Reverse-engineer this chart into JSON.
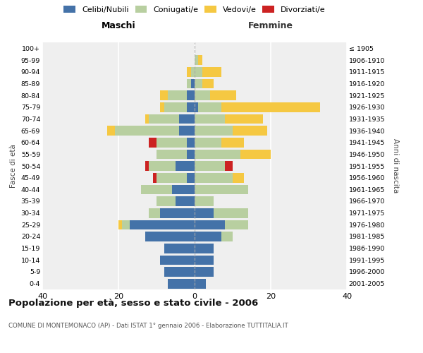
{
  "age_groups": [
    "0-4",
    "5-9",
    "10-14",
    "15-19",
    "20-24",
    "25-29",
    "30-34",
    "35-39",
    "40-44",
    "45-49",
    "50-54",
    "55-59",
    "60-64",
    "65-69",
    "70-74",
    "75-79",
    "80-84",
    "85-89",
    "90-94",
    "95-99",
    "100+"
  ],
  "birth_years": [
    "2001-2005",
    "1996-2000",
    "1991-1995",
    "1986-1990",
    "1981-1985",
    "1976-1980",
    "1971-1975",
    "1966-1970",
    "1961-1965",
    "1956-1960",
    "1951-1955",
    "1946-1950",
    "1941-1945",
    "1936-1940",
    "1931-1935",
    "1926-1930",
    "1921-1925",
    "1916-1920",
    "1911-1915",
    "1906-1910",
    "≤ 1905"
  ],
  "maschi": {
    "celibi": [
      7,
      8,
      9,
      8,
      13,
      17,
      9,
      5,
      6,
      2,
      5,
      2,
      2,
      4,
      4,
      2,
      2,
      1,
      0,
      0,
      0
    ],
    "coniugati": [
      0,
      0,
      0,
      0,
      0,
      2,
      3,
      5,
      8,
      8,
      7,
      8,
      8,
      17,
      8,
      6,
      5,
      1,
      1,
      0,
      0
    ],
    "vedovi": [
      0,
      0,
      0,
      0,
      0,
      1,
      0,
      0,
      0,
      0,
      0,
      0,
      0,
      2,
      1,
      1,
      2,
      0,
      1,
      0,
      0
    ],
    "divorziati": [
      0,
      0,
      0,
      0,
      0,
      0,
      0,
      0,
      0,
      1,
      1,
      0,
      2,
      0,
      0,
      0,
      0,
      0,
      0,
      0,
      0
    ]
  },
  "femmine": {
    "nubili": [
      3,
      5,
      5,
      5,
      7,
      8,
      5,
      0,
      0,
      0,
      0,
      0,
      0,
      0,
      0,
      1,
      0,
      0,
      0,
      0,
      0
    ],
    "coniugate": [
      0,
      0,
      0,
      0,
      3,
      6,
      9,
      5,
      14,
      10,
      8,
      12,
      7,
      10,
      8,
      6,
      4,
      2,
      2,
      1,
      0
    ],
    "vedove": [
      0,
      0,
      0,
      0,
      0,
      0,
      0,
      0,
      0,
      3,
      0,
      8,
      6,
      9,
      10,
      26,
      7,
      3,
      5,
      1,
      0
    ],
    "divorziate": [
      0,
      0,
      0,
      0,
      0,
      0,
      0,
      0,
      0,
      0,
      2,
      0,
      0,
      0,
      0,
      0,
      0,
      0,
      0,
      0,
      0
    ]
  },
  "colors": {
    "celibi_nubili": "#4472a8",
    "coniugati": "#b8cfa0",
    "vedovi": "#f5c842",
    "divorziati": "#cc2222"
  },
  "title": "Popolazione per età, sesso e stato civile - 2006",
  "subtitle": "COMUNE DI MONTEMONACO (AP) - Dati ISTAT 1° gennaio 2006 - Elaborazione TUTTITALIA.IT",
  "xlabel_left": "Maschi",
  "xlabel_right": "Femmine",
  "ylabel_left": "Fasce di età",
  "ylabel_right": "Anni di nascita",
  "xlim": 40,
  "legend_labels": [
    "Celibi/Nubili",
    "Coniugati/e",
    "Vedovi/e",
    "Divorziati/e"
  ]
}
